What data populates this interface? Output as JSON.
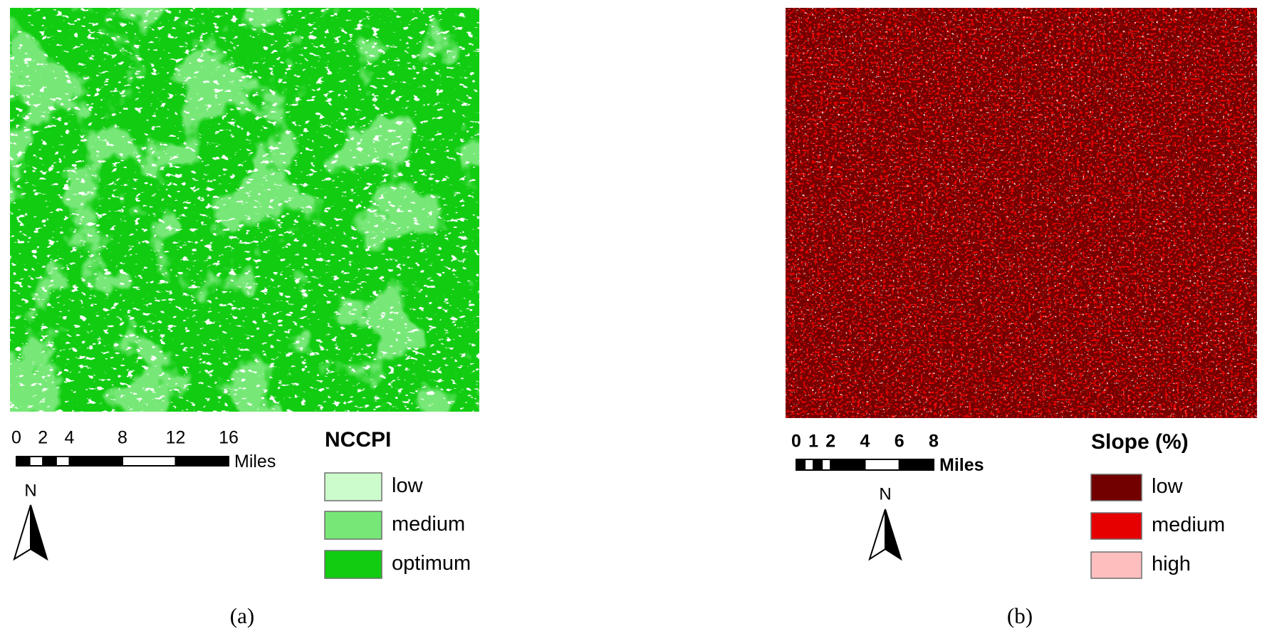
{
  "panels": [
    {
      "label": "(a)",
      "scale_bar": {
        "ticks": [
          0,
          2,
          4,
          8,
          12,
          16
        ],
        "unit": "Miles"
      },
      "north": "N",
      "legend": {
        "title": "NCCPI",
        "items": [
          {
            "label": "low",
            "color": "#ccfccc"
          },
          {
            "label": "medium",
            "color": "#77e877"
          },
          {
            "label": "optimum",
            "color": "#11cc11"
          }
        ]
      }
    },
    {
      "label": "(b)",
      "scale_bar": {
        "ticks": [
          0,
          1,
          2,
          4,
          6,
          8
        ],
        "unit": "Miles"
      },
      "north": "N",
      "legend": {
        "title": "Slope (%)",
        "items": [
          {
            "label": "low",
            "color": "#730000"
          },
          {
            "label": "medium",
            "color": "#e60000"
          },
          {
            "label": "high",
            "color": "#ffbebe"
          }
        ]
      }
    }
  ]
}
